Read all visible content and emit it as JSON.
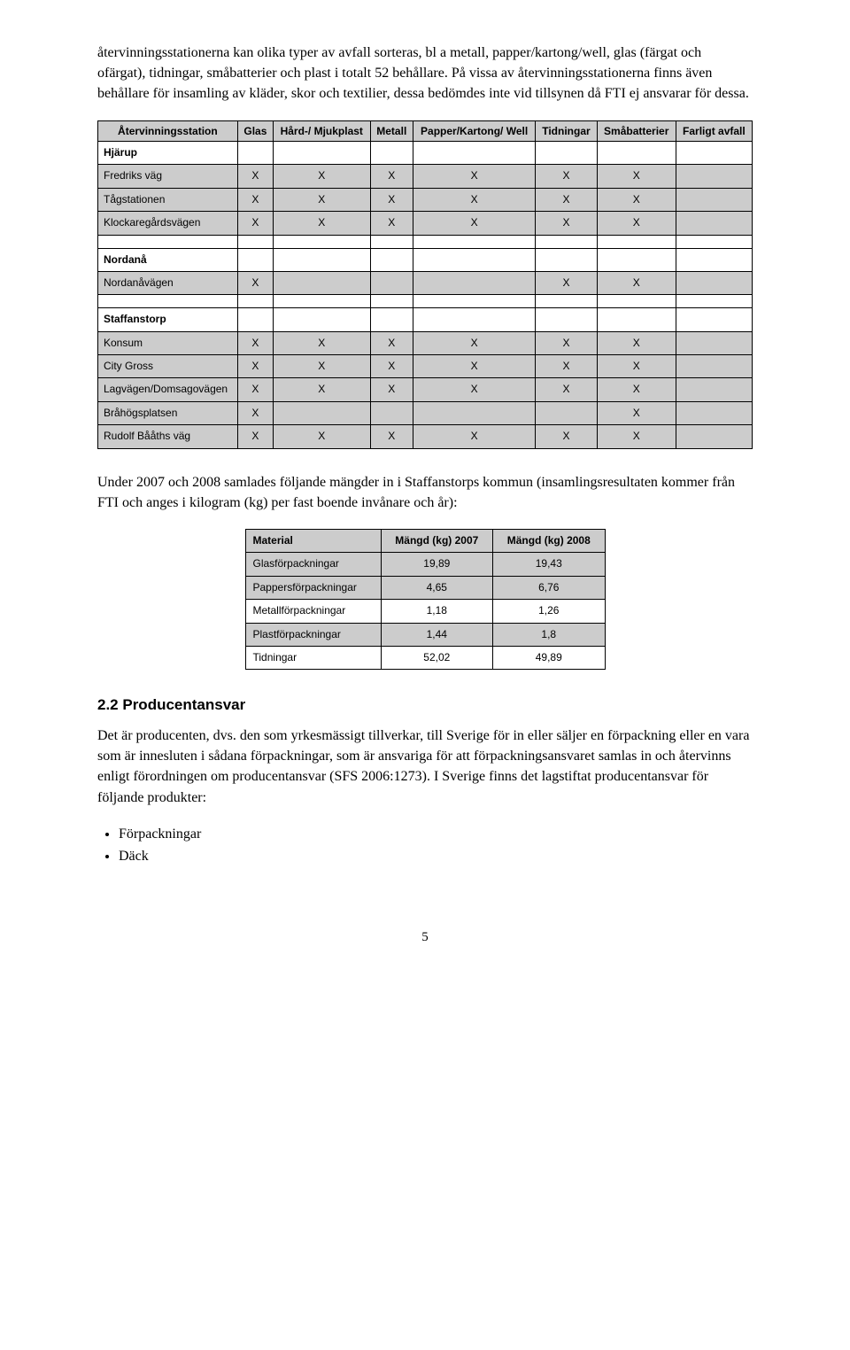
{
  "para1": "återvinningsstationerna kan olika typer av avfall sorteras, bl a metall, papper/kartong/well, glas (färgat och ofärgat), tidningar, småbatterier och plast i totalt 52 behållare. På vissa av återvinningsstationerna finns även behållare för insamling av kläder, skor och textilier, dessa bedömdes inte vid tillsynen då FTI ej ansvarar för dessa.",
  "table1": {
    "headers": [
      "Återvinningsstation",
      "Glas",
      "Hård-/\nMjukplast",
      "Metall",
      "Papper/Kartong/\nWell",
      "Tidningar",
      "Småbatterier",
      "Farligt\navfall"
    ],
    "sections": [
      {
        "title": "Hjärup",
        "rows": [
          {
            "label": "Fredriks väg",
            "vals": [
              "X",
              "X",
              "X",
              "X",
              "X",
              "X",
              ""
            ]
          },
          {
            "label": "Tågstationen",
            "vals": [
              "X",
              "X",
              "X",
              "X",
              "X",
              "X",
              ""
            ]
          },
          {
            "label": "Klockaregårdsvägen",
            "vals": [
              "X",
              "X",
              "X",
              "X",
              "X",
              "X",
              ""
            ]
          }
        ]
      },
      {
        "title": "Nordanå",
        "rows": [
          {
            "label": "Nordanåvägen",
            "vals": [
              "X",
              "",
              "",
              "",
              "X",
              "X",
              ""
            ]
          }
        ]
      },
      {
        "title": "Staffanstorp",
        "rows": [
          {
            "label": "Konsum",
            "vals": [
              "X",
              "X",
              "X",
              "X",
              "X",
              "X",
              ""
            ]
          },
          {
            "label": "City Gross",
            "vals": [
              "X",
              "X",
              "X",
              "X",
              "X",
              "X",
              ""
            ]
          },
          {
            "label": "Lagvägen/Domsagovägen",
            "vals": [
              "X",
              "X",
              "X",
              "X",
              "X",
              "X",
              ""
            ]
          },
          {
            "label": "Bråhögsplatsen",
            "vals": [
              "X",
              "",
              "",
              "",
              "",
              "X",
              ""
            ]
          },
          {
            "label": "Rudolf Bååths väg",
            "vals": [
              "X",
              "X",
              "X",
              "X",
              "X",
              "X",
              ""
            ]
          }
        ]
      }
    ]
  },
  "para2": "Under 2007 och 2008 samlades följande mängder in i Staffanstorps kommun (insamlingsresultaten kommer från FTI och anges i kilogram (kg) per fast boende invånare och år):",
  "table2": {
    "headers": [
      "Material",
      "Mängd (kg) 2007",
      "Mängd (kg) 2008"
    ],
    "rows": [
      {
        "label": "Glasförpackningar",
        "v1": "19,89",
        "v2": "19,43",
        "alt": true
      },
      {
        "label": "Pappersförpackningar",
        "v1": "4,65",
        "v2": "6,76",
        "alt": true
      },
      {
        "label": "Metallförpackningar",
        "v1": "1,18",
        "v2": "1,26",
        "alt": false
      },
      {
        "label": "Plastförpackningar",
        "v1": "1,44",
        "v2": "1,8",
        "alt": true
      },
      {
        "label": "Tidningar",
        "v1": "52,02",
        "v2": "49,89",
        "alt": false
      }
    ]
  },
  "section22": {
    "heading": "2.2   Producentansvar",
    "body": "Det är producenten, dvs. den som yrkesmässigt tillverkar, till Sverige för in eller säljer en förpackning eller en vara som är innesluten i sådana förpackningar, som är ansvariga för att förpackningsansvaret samlas in och återvinns enligt förordningen om producentansvar (SFS 2006:1273). I Sverige finns det lagstiftat producentansvar för följande produkter:",
    "bullets": [
      "Förpackningar",
      "Däck"
    ]
  },
  "pageNumber": "5"
}
